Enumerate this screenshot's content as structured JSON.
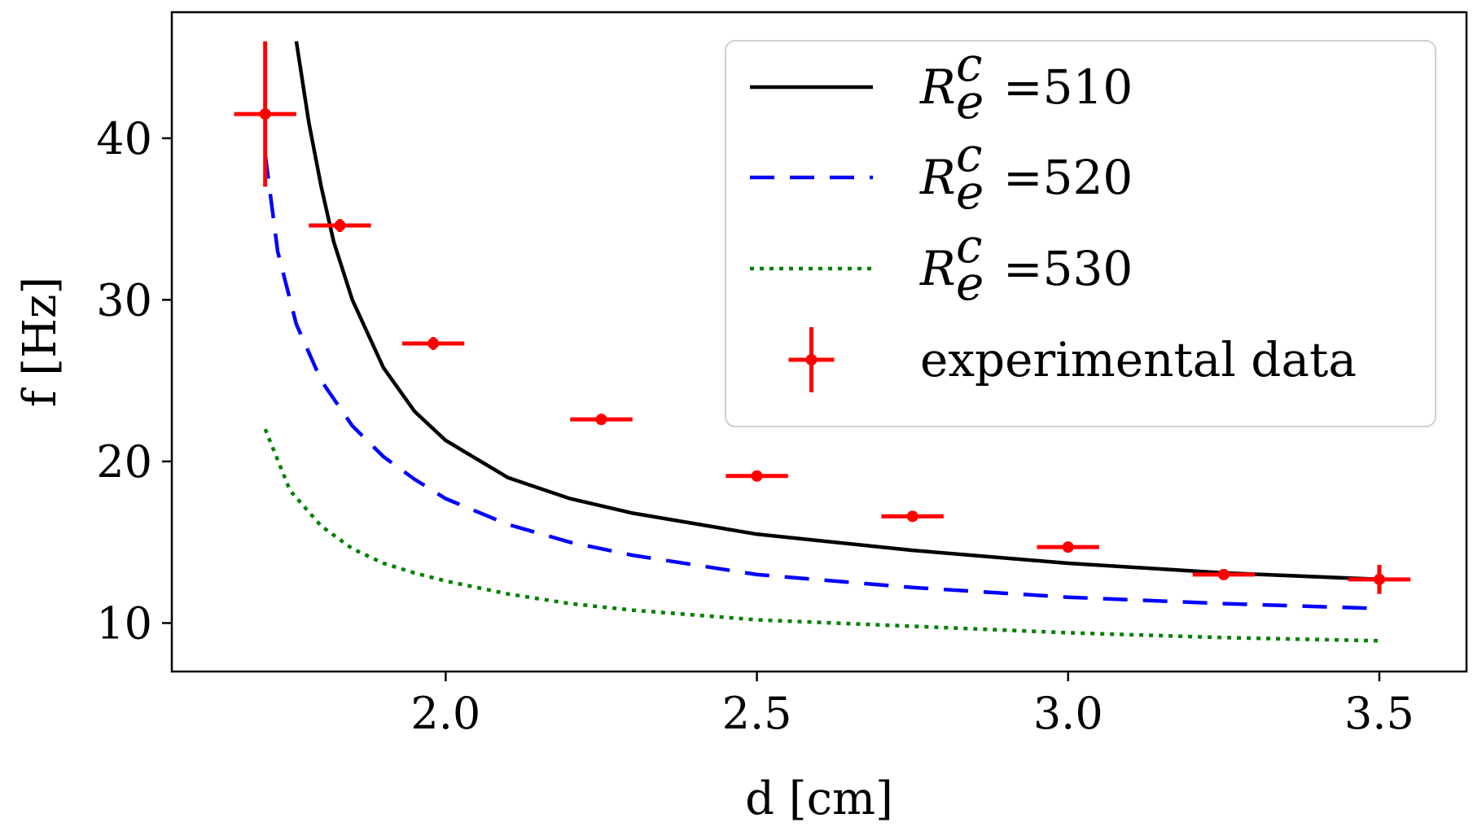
{
  "chart_data": {
    "type": "line",
    "title": "",
    "xlabel": "d [cm]",
    "ylabel": "f [Hz]",
    "xlim": [
      1.56,
      3.64
    ],
    "ylim": [
      7.0,
      47.8
    ],
    "xticks": [
      2.0,
      2.5,
      3.0,
      3.5
    ],
    "xtick_labels": [
      "2.0",
      "2.5",
      "3.0",
      "3.5"
    ],
    "yticks": [
      10,
      20,
      30,
      40
    ],
    "ytick_labels": [
      "10",
      "20",
      "30",
      "40"
    ],
    "grid": false,
    "legend_position": "top-right",
    "series": [
      {
        "name": "R_e^c =510",
        "legend_symbol": "R",
        "legend_sup": "c",
        "legend_sub": "e",
        "legend_value": "=510",
        "style": "solid",
        "color": "#000000",
        "x": [
          1.76,
          1.78,
          1.8,
          1.82,
          1.85,
          1.9,
          1.95,
          2.0,
          2.1,
          2.2,
          2.3,
          2.5,
          2.75,
          3.0,
          3.25,
          3.5
        ],
        "y": [
          46.0,
          41.0,
          37.0,
          33.6,
          30.0,
          25.8,
          23.1,
          21.3,
          19.0,
          17.7,
          16.8,
          15.5,
          14.5,
          13.7,
          13.1,
          12.7
        ]
      },
      {
        "name": "R_e^c =520",
        "legend_symbol": "R",
        "legend_sup": "c",
        "legend_sub": "e",
        "legend_value": "=520",
        "style": "dashed",
        "color": "#0000ff",
        "x": [
          1.71,
          1.73,
          1.76,
          1.8,
          1.85,
          1.9,
          1.95,
          2.0,
          2.1,
          2.2,
          2.3,
          2.5,
          2.75,
          3.0,
          3.25,
          3.5
        ],
        "y": [
          39.0,
          33.0,
          28.5,
          25.0,
          22.2,
          20.3,
          18.9,
          17.7,
          16.1,
          15.0,
          14.2,
          13.0,
          12.2,
          11.6,
          11.2,
          10.9
        ]
      },
      {
        "name": "R_e^c =530",
        "legend_symbol": "R",
        "legend_sup": "c",
        "legend_sub": "e",
        "legend_value": "=530",
        "style": "dotted",
        "color": "#008000",
        "x": [
          1.71,
          1.75,
          1.8,
          1.85,
          1.9,
          1.95,
          2.0,
          2.1,
          2.2,
          2.3,
          2.5,
          2.75,
          3.0,
          3.25,
          3.5
        ],
        "y": [
          22.0,
          18.2,
          16.0,
          14.6,
          13.7,
          13.1,
          12.6,
          11.8,
          11.2,
          10.8,
          10.2,
          9.8,
          9.4,
          9.1,
          8.9
        ]
      }
    ],
    "experimental": {
      "name": "experimental data",
      "color": "#ff0000",
      "points": [
        {
          "x": 1.71,
          "y": 41.5,
          "xerr": 0.05,
          "yerr": 4.5
        },
        {
          "x": 1.83,
          "y": 34.6,
          "xerr": 0.05,
          "yerr": 0.4
        },
        {
          "x": 1.98,
          "y": 27.3,
          "xerr": 0.05,
          "yerr": 0.4
        },
        {
          "x": 2.25,
          "y": 22.6,
          "xerr": 0.05,
          "yerr": 0.2
        },
        {
          "x": 2.5,
          "y": 19.1,
          "xerr": 0.05,
          "yerr": 0.2
        },
        {
          "x": 2.75,
          "y": 16.6,
          "xerr": 0.05,
          "yerr": 0.2
        },
        {
          "x": 3.0,
          "y": 14.7,
          "xerr": 0.05,
          "yerr": 0.2
        },
        {
          "x": 3.25,
          "y": 13.0,
          "xerr": 0.05,
          "yerr": 0.2
        },
        {
          "x": 3.5,
          "y": 12.7,
          "xerr": 0.05,
          "yerr": 0.9
        }
      ]
    }
  }
}
